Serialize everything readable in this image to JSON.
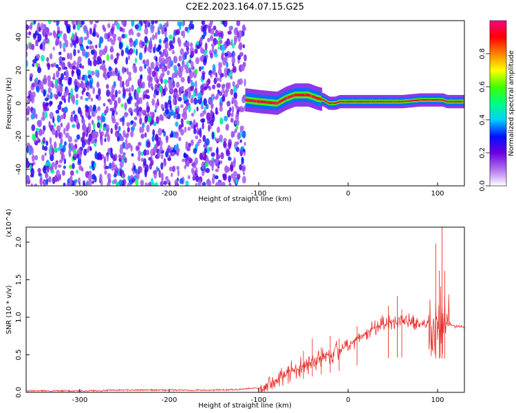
{
  "figure_title": "C2E2.2023.164.07.15.G25",
  "chart_data": [
    {
      "type": "heatmap",
      "title": "C2E2.2023.164.07.15.G25",
      "xlabel": "Height of straight line (km)",
      "ylabel": "Frequency (Hz)",
      "xlim": [
        -360,
        130
      ],
      "ylim": [
        -50,
        50
      ],
      "x_ticks": [
        -300,
        -200,
        -100,
        0,
        100
      ],
      "y_ticks": [
        -40,
        -20,
        0,
        20,
        40
      ],
      "grid": false,
      "colorbar": {
        "label": "Normalized spectral amplitude",
        "range": [
          0.0,
          1.0
        ],
        "ticks": [
          0.0,
          0.2,
          0.4,
          0.6,
          0.8
        ],
        "colors": [
          "#ffffff",
          "#b070f0",
          "#6a00e0",
          "#0010ff",
          "#00d0ff",
          "#00ff80",
          "#40ff00",
          "#ffff00",
          "#ff8000",
          "#ff0000",
          "#ff0080"
        ]
      },
      "noise_region": {
        "x": [
          -360,
          -115
        ],
        "level": 0.25
      },
      "ridge": [
        [
          -115,
          2
        ],
        [
          -100,
          1
        ],
        [
          -80,
          0
        ],
        [
          -70,
          3
        ],
        [
          -60,
          5
        ],
        [
          -45,
          5
        ],
        [
          -35,
          3
        ],
        [
          -28,
          2
        ],
        [
          -22,
          0
        ],
        [
          -15,
          0
        ],
        [
          -10,
          1
        ],
        [
          0,
          1
        ],
        [
          20,
          1
        ],
        [
          40,
          1
        ],
        [
          60,
          1
        ],
        [
          80,
          2
        ],
        [
          95,
          2
        ],
        [
          105,
          2
        ],
        [
          110,
          1
        ],
        [
          130,
          1
        ]
      ]
    },
    {
      "type": "line",
      "title": "",
      "xlabel": "Height of straight line (km)",
      "ylabel": "SNR (10 * v/v)",
      "y_scale_label": "(x10^4)",
      "xlim": [
        -360,
        130
      ],
      "ylim": [
        0,
        2.2
      ],
      "x_ticks": [
        -300,
        -200,
        -100,
        0,
        100
      ],
      "y_ticks": [
        0.0,
        0.5,
        1.0,
        1.5,
        2.0
      ],
      "grid": false,
      "series": [
        {
          "color": "#e8302a",
          "points": [
            [
              -360,
              0.02
            ],
            [
              -300,
              0.02
            ],
            [
              -250,
              0.03
            ],
            [
              -200,
              0.03
            ],
            [
              -150,
              0.03
            ],
            [
              -120,
              0.04
            ],
            [
              -100,
              0.06
            ],
            [
              -90,
              0.12
            ],
            [
              -80,
              0.18
            ],
            [
              -70,
              0.24
            ],
            [
              -60,
              0.3
            ],
            [
              -50,
              0.36
            ],
            [
              -40,
              0.42
            ],
            [
              -30,
              0.48
            ],
            [
              -20,
              0.52
            ],
            [
              -10,
              0.57
            ],
            [
              0,
              0.62
            ],
            [
              10,
              0.72
            ],
            [
              20,
              0.8
            ],
            [
              30,
              0.86
            ],
            [
              40,
              0.9
            ],
            [
              50,
              0.93
            ],
            [
              60,
              0.93
            ],
            [
              70,
              0.92
            ],
            [
              80,
              0.92
            ],
            [
              90,
              0.91
            ],
            [
              100,
              0.9
            ],
            [
              110,
              0.9
            ],
            [
              120,
              0.88
            ],
            [
              130,
              0.87
            ]
          ],
          "spikes": [
            [
              -50,
              0.55
            ],
            [
              -40,
              0.72
            ],
            [
              -30,
              0.6
            ],
            [
              -20,
              0.75
            ],
            [
              -10,
              0.72
            ],
            [
              10,
              0.88
            ],
            [
              45,
              1.15
            ],
            [
              55,
              1.28
            ],
            [
              60,
              1.1
            ],
            [
              98,
              1.98
            ],
            [
              102,
              1.62
            ],
            [
              105,
              2.2
            ],
            [
              108,
              1.62
            ]
          ]
        }
      ]
    }
  ]
}
